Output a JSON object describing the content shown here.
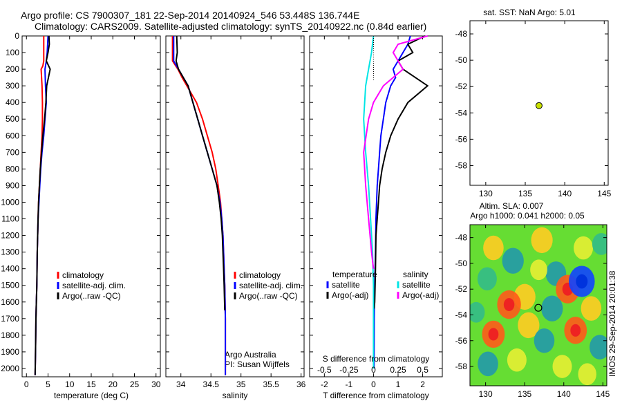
{
  "title": {
    "line1": "Argo profile: CS 7900307_181 22-Sep-2014 20140924_546 53.448S 136.744E",
    "line2": "Climatology: CARS2009. Satellite-adjusted climatology: synTS_20140922.nc (0.84d earlier)"
  },
  "colors": {
    "climatology": "#ff0000",
    "satellite": "#0000ff",
    "argo": "#000000",
    "sal_satellite": "#00e5e5",
    "sal_argo": "#ff00ff",
    "marker": "#c8e000"
  },
  "side_text": {
    "sst": "sat. SST: NaN Argo: 5.01",
    "altim1": "Altim. SLA: 0.007",
    "altim2": "Argo h1000: 0.041 h2000: 0.05",
    "credit": "IMOS 29-Sep-2014 20:01:38",
    "argo_australia": "Argo Australia",
    "pi": "PI: Susan Wijffels"
  },
  "chart_data": [
    {
      "type": "line",
      "panel": "temperature",
      "xlabel": "temperature (deg C)",
      "ylabel": "",
      "xlim": [
        -1,
        31
      ],
      "ylim": [
        2050,
        0
      ],
      "xticks": [
        0,
        5,
        10,
        15,
        20,
        25,
        30
      ],
      "yticks": [
        0,
        100,
        200,
        300,
        400,
        500,
        600,
        700,
        800,
        900,
        1000,
        1100,
        1200,
        1300,
        1400,
        1500,
        1600,
        1700,
        1800,
        1900,
        2000
      ],
      "legend_placement": "lower-middle",
      "series": [
        {
          "name": "climatology",
          "color": "#ff0000",
          "x": [
            4.0,
            4.0,
            3.8,
            3.4,
            3.6,
            3.7,
            3.7,
            3.6,
            3.4,
            3.2,
            3.0,
            2.8,
            2.7,
            2.6,
            2.5,
            2.4,
            2.3,
            2.2,
            2.1,
            2.0
          ],
          "y": [
            0,
            150,
            180,
            200,
            300,
            400,
            500,
            600,
            700,
            800,
            900,
            1000,
            1100,
            1200,
            1300,
            1500,
            1600,
            1700,
            1900,
            2040
          ]
        },
        {
          "name": "satellite-adj. clim.",
          "color": "#0000ff",
          "x": [
            5.0,
            4.8,
            4.6,
            4.3,
            4.4,
            4.6,
            4.3,
            4.0,
            3.6,
            3.3,
            3.1,
            2.9,
            2.7,
            2.6,
            2.5,
            2.4,
            2.3,
            2.2,
            2.1,
            2.0
          ],
          "y": [
            0,
            100,
            150,
            200,
            300,
            400,
            500,
            600,
            700,
            800,
            900,
            1000,
            1100,
            1200,
            1300,
            1500,
            1600,
            1700,
            1900,
            2040
          ]
        },
        {
          "name": "Argo(..raw -QC)",
          "color": "#000000",
          "x": [
            5.2,
            5.3,
            5.0,
            4.6,
            5.5,
            5.1,
            4.7,
            4.5,
            4.2,
            3.8,
            3.5,
            3.2,
            3.0,
            2.8,
            2.7,
            2.6,
            2.5,
            2.4,
            2.3,
            2.2,
            2.1,
            2.0
          ],
          "y": [
            0,
            50,
            100,
            150,
            200,
            250,
            300,
            400,
            500,
            600,
            700,
            800,
            900,
            1000,
            1100,
            1200,
            1300,
            1500,
            1600,
            1700,
            1900,
            2040
          ]
        }
      ]
    },
    {
      "type": "line",
      "panel": "salinity",
      "xlabel": "salinity",
      "ylabel": "",
      "xlim": [
        33.75,
        36.05
      ],
      "ylim": [
        2050,
        0
      ],
      "xticks": [
        34,
        34.5,
        35,
        35.5,
        36
      ],
      "legend_placement": "lower-middle",
      "series": [
        {
          "name": "climatology",
          "color": "#ff0000",
          "x": [
            33.86,
            33.86,
            33.95,
            34.02,
            34.1,
            34.26,
            34.36,
            34.44,
            34.52,
            34.58,
            34.62,
            34.66,
            34.68,
            34.7,
            34.71,
            34.72,
            34.73,
            34.74,
            34.74
          ],
          "y": [
            0,
            150,
            200,
            250,
            300,
            400,
            500,
            600,
            700,
            800,
            900,
            1000,
            1100,
            1200,
            1300,
            1400,
            1500,
            1700,
            2040
          ]
        },
        {
          "name": "satellite-adj. clim.",
          "color": "#0000ff",
          "x": [
            33.88,
            33.88,
            33.96,
            34.04,
            34.12,
            34.2,
            34.28,
            34.36,
            34.44,
            34.52,
            34.6,
            34.65,
            34.68,
            34.7,
            34.71,
            34.72,
            34.73,
            34.74,
            34.74
          ],
          "y": [
            0,
            150,
            200,
            250,
            300,
            400,
            500,
            600,
            700,
            800,
            900,
            1000,
            1100,
            1200,
            1300,
            1400,
            1500,
            1700,
            2040
          ]
        },
        {
          "name": "Argo(..raw -QC)",
          "color": "#000000",
          "x": [
            33.93,
            33.94,
            33.92,
            33.96,
            34.04,
            34.12,
            34.2,
            34.28,
            34.36,
            34.44,
            34.52,
            34.6,
            34.64,
            34.67,
            34.69,
            34.7,
            34.71,
            34.72,
            34.73
          ],
          "y": [
            0,
            100,
            150,
            200,
            250,
            300,
            400,
            500,
            600,
            700,
            800,
            900,
            1000,
            1100,
            1200,
            1300,
            1400,
            1500,
            1650
          ]
        }
      ]
    },
    {
      "type": "line",
      "panel": "difference",
      "xlabel": "T difference from climatology",
      "xlabel_top": "S difference from climatology",
      "xlim": [
        -2.6,
        2.8
      ],
      "ylim": [
        2050,
        0
      ],
      "xticks": [
        -2,
        -1,
        0,
        1,
        2
      ],
      "xticks_s": [
        -0.5,
        -0.25,
        0,
        0.25,
        0.5
      ],
      "legend_placement": "lower-middle",
      "legend_headers": [
        "temperature",
        "salinity"
      ],
      "series": [
        {
          "name": "satellite",
          "group": "temperature",
          "color": "#0000ff",
          "x": [
            1.5,
            1.4,
            1.2,
            1.0,
            0.8,
            0.9,
            0.7,
            0.5,
            0.4,
            0.3,
            0.25,
            0.2,
            0.15,
            0.1,
            0.08,
            0.05,
            0.03,
            0.02
          ],
          "y": [
            0,
            50,
            100,
            150,
            200,
            250,
            300,
            400,
            500,
            600,
            700,
            800,
            900,
            1100,
            1300,
            1500,
            1700,
            2000
          ]
        },
        {
          "name": "Argo(-adj)",
          "group": "temperature",
          "color": "#000000",
          "x": [
            2.1,
            1.4,
            1.6,
            1.0,
            1.2,
            2.2,
            1.4,
            1.0,
            0.7,
            0.5,
            0.35,
            0.25,
            0.2,
            0.15,
            0.1,
            0.08,
            0.05,
            0.03
          ],
          "y": [
            0,
            50,
            100,
            150,
            200,
            300,
            400,
            500,
            600,
            700,
            800,
            900,
            1000,
            1100,
            1200,
            1400,
            1600,
            1640
          ]
        },
        {
          "name": "satellite",
          "group": "salinity",
          "color": "#00e5e5",
          "x": [
            0.0,
            -0.02,
            -0.05,
            -0.08,
            -0.1,
            -0.08,
            -0.05,
            -0.03,
            -0.01,
            0.0,
            0.0,
            0.0
          ],
          "y": [
            0,
            100,
            200,
            300,
            500,
            700,
            900,
            1100,
            1300,
            1500,
            1700,
            2000
          ]
        },
        {
          "name": "Argo(-adj)",
          "group": "salinity",
          "color": "#ff00ff",
          "x": [
            0.55,
            0.25,
            0.2,
            0.3,
            0.1,
            0.0,
            -0.05,
            -0.1,
            -0.08,
            -0.05,
            -0.02,
            0.0
          ],
          "y": [
            0,
            50,
            100,
            200,
            300,
            400,
            500,
            700,
            900,
            1100,
            1300,
            1400
          ]
        }
      ]
    },
    {
      "type": "scatter",
      "panel": "location",
      "title": "sat. SST: NaN Argo: 5.01",
      "xlim": [
        128,
        145.5
      ],
      "ylim": [
        -59.5,
        -47
      ],
      "xticks": [
        130,
        135,
        140,
        145
      ],
      "yticks": [
        -48,
        -50,
        -52,
        -54,
        -56,
        -58
      ],
      "points": [
        {
          "x": 136.744,
          "y": -53.448
        }
      ]
    },
    {
      "type": "heatmap",
      "panel": "altimetry",
      "title": "Altim. SLA: 0.007",
      "subtitle": "Argo h1000: 0.041 h2000: 0.05",
      "xlim": [
        128,
        145.5
      ],
      "ylim": [
        -59.5,
        -47
      ],
      "xticks": [
        130,
        135,
        140,
        145
      ],
      "yticks": [
        -48,
        -50,
        -52,
        -54,
        -56,
        -58
      ],
      "points": [
        {
          "x": 136.744,
          "y": -53.448
        }
      ],
      "blobs": [
        {
          "x": 131.0,
          "y": -48.8,
          "v": 0.6
        },
        {
          "x": 137.2,
          "y": -48.2,
          "v": 0.7
        },
        {
          "x": 133.5,
          "y": -49.8,
          "v": -0.7
        },
        {
          "x": 139.0,
          "y": -50.8,
          "v": -0.6
        },
        {
          "x": 142.5,
          "y": -48.8,
          "v": 0.5
        },
        {
          "x": 144.8,
          "y": -48.5,
          "v": -0.4
        },
        {
          "x": 140.5,
          "y": -52.0,
          "v": 0.9
        },
        {
          "x": 142.3,
          "y": -51.4,
          "v": -1.1
        },
        {
          "x": 135.0,
          "y": -52.6,
          "v": 0.7
        },
        {
          "x": 133.0,
          "y": -53.2,
          "v": 0.9
        },
        {
          "x": 130.2,
          "y": -51.2,
          "v": -0.5
        },
        {
          "x": 138.5,
          "y": -53.5,
          "v": -0.7
        },
        {
          "x": 143.5,
          "y": -53.5,
          "v": 0.6
        },
        {
          "x": 131.0,
          "y": -55.5,
          "v": 0.8
        },
        {
          "x": 135.5,
          "y": -54.8,
          "v": 0.7
        },
        {
          "x": 137.5,
          "y": -56.0,
          "v": -0.6
        },
        {
          "x": 141.5,
          "y": -55.2,
          "v": 0.8
        },
        {
          "x": 144.6,
          "y": -56.5,
          "v": -0.6
        },
        {
          "x": 130.3,
          "y": -57.8,
          "v": -0.6
        },
        {
          "x": 134.0,
          "y": -57.5,
          "v": 0.5
        },
        {
          "x": 139.8,
          "y": -58.0,
          "v": 0.5
        },
        {
          "x": 143.0,
          "y": -58.6,
          "v": 0.4
        },
        {
          "x": 136.8,
          "y": -50.5,
          "v": 0.3
        },
        {
          "x": 128.8,
          "y": -53.8,
          "v": -0.3
        }
      ]
    }
  ]
}
